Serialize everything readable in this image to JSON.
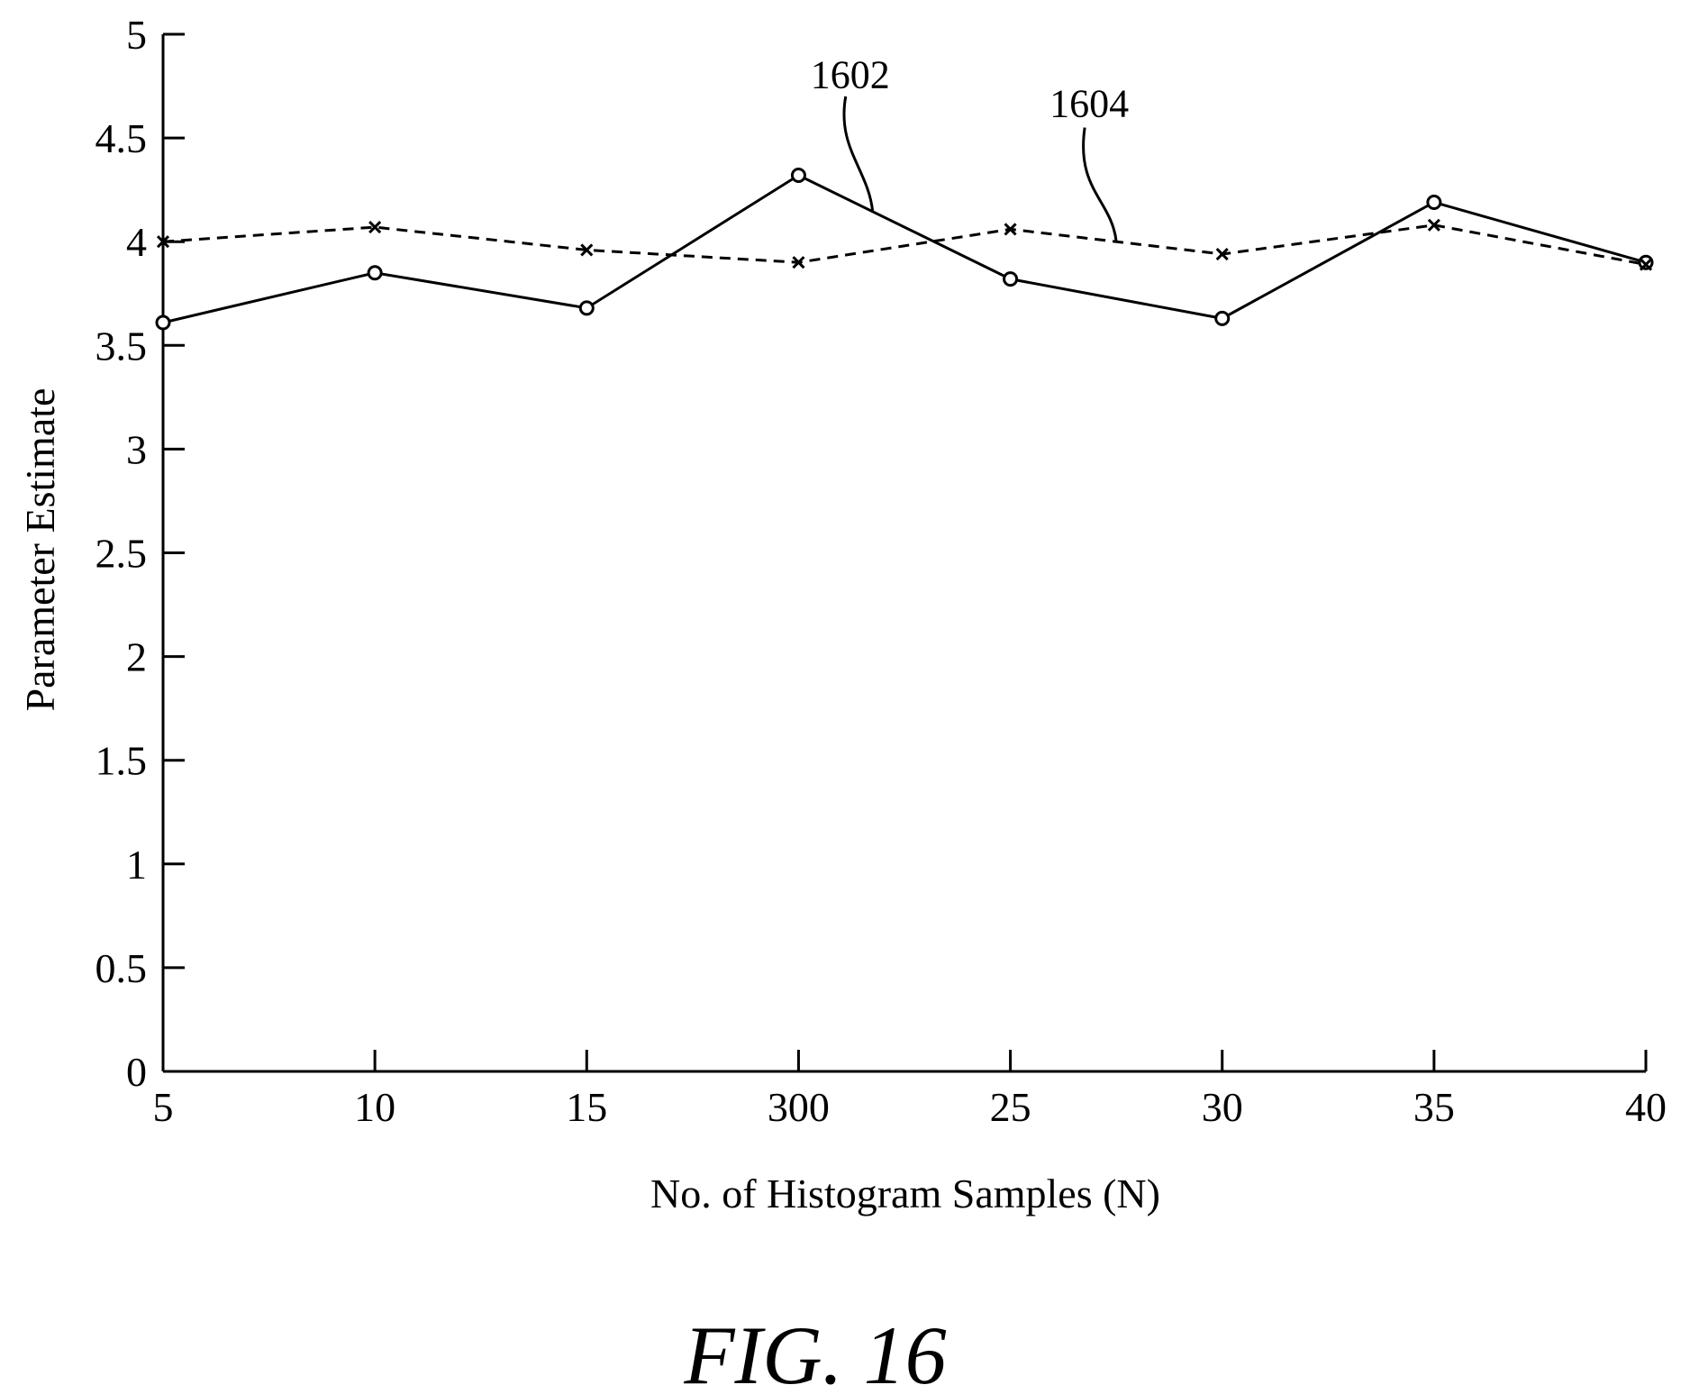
{
  "chart_data": {
    "type": "line",
    "title": "",
    "xlabel": "No. of Histogram Samples (N)",
    "ylabel": "Parameter Estimate",
    "categories": [
      "5",
      "10",
      "15",
      "300",
      "25",
      "30",
      "35",
      "40"
    ],
    "ylim": [
      0,
      5
    ],
    "yticks": [
      "0",
      "0.5",
      "1",
      "1.5",
      "2",
      "2.5",
      "3",
      "3.5",
      "4",
      "4.5",
      "5"
    ],
    "grid": false,
    "series": [
      {
        "name": "1602",
        "line_style": "solid",
        "marker": "circle",
        "values": [
          3.61,
          3.85,
          3.68,
          4.32,
          3.82,
          3.63,
          4.19,
          3.9
        ]
      },
      {
        "name": "1604",
        "line_style": "dashed",
        "marker": "x",
        "values": [
          4.0,
          4.07,
          3.96,
          3.9,
          4.06,
          3.94,
          4.08,
          3.89
        ]
      }
    ]
  },
  "figure_label": "FIG. 16"
}
